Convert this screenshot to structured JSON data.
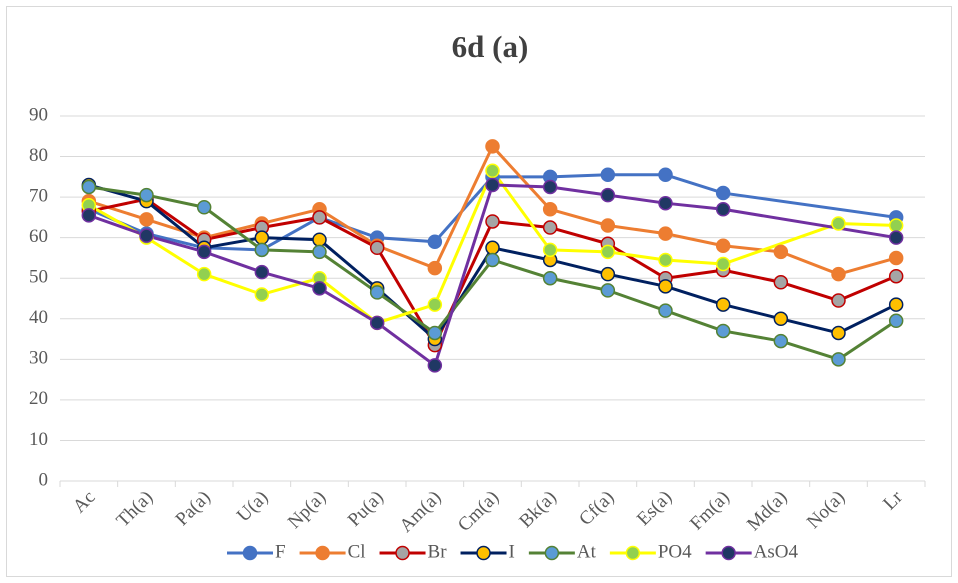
{
  "chart_data": {
    "type": "line",
    "title": "6d (a)",
    "categories": [
      "Ac",
      "Th(a)",
      "Pa(a)",
      "U(a)",
      "Np(a)",
      "Pu(a)",
      "Am(a)",
      "Cm(a)",
      "Bk(a)",
      "Cf(a)",
      "Es(a)",
      "Fm(a)",
      "Md(a)",
      "No(a)",
      "Lr"
    ],
    "ylim": [
      0,
      90
    ],
    "yticks": [
      0,
      10,
      20,
      30,
      40,
      50,
      60,
      70,
      80,
      90
    ],
    "grid": true,
    "span_gaps": true,
    "legend": "bottom",
    "series": [
      {
        "name": "F",
        "color": "#4472c4",
        "marker_color": "#4472c4",
        "values": [
          67,
          61,
          57.5,
          57,
          65,
          60,
          59,
          75,
          75,
          75.5,
          75.5,
          71,
          null,
          null,
          65
        ]
      },
      {
        "name": "Cl",
        "color": "#ed7d31",
        "marker_color": "#ed7d31",
        "values": [
          69,
          64.5,
          60,
          63.5,
          67,
          58,
          52.5,
          82.5,
          67,
          63,
          61,
          58,
          56.5,
          51,
          55
        ]
      },
      {
        "name": "Br",
        "color": "#c00000",
        "marker_color": "#a5a5a5",
        "values": [
          66.5,
          69.5,
          59.5,
          62.5,
          65,
          57.5,
          33.5,
          64,
          62.5,
          58.5,
          50,
          52,
          49,
          44.5,
          50.5
        ]
      },
      {
        "name": "I",
        "color": "#002060",
        "marker_color": "#ffc000",
        "values": [
          73,
          69,
          57.5,
          60,
          59.5,
          47.5,
          35,
          57.5,
          54.5,
          51,
          48,
          43.5,
          40,
          36.5,
          43.5
        ]
      },
      {
        "name": "At",
        "color": "#548235",
        "marker_color": "#5b9bd5",
        "values": [
          72.5,
          70.5,
          67.5,
          57,
          56.5,
          46.5,
          36.5,
          54.5,
          50,
          47,
          42,
          37,
          34.5,
          30,
          39.5
        ]
      },
      {
        "name": "PO4",
        "color": "#ffff00",
        "marker_color": "#92d050",
        "values": [
          68,
          60,
          51,
          46,
          50,
          39,
          43.5,
          76.5,
          57,
          56.5,
          54.5,
          53.5,
          null,
          63.5,
          63
        ]
      },
      {
        "name": "AsO4",
        "color": "#7030a0",
        "marker_color": "#203864",
        "values": [
          65.5,
          60.5,
          56.5,
          51.5,
          47.5,
          39,
          28.5,
          73,
          72.5,
          70.5,
          68.5,
          67,
          null,
          null,
          60
        ]
      }
    ]
  }
}
